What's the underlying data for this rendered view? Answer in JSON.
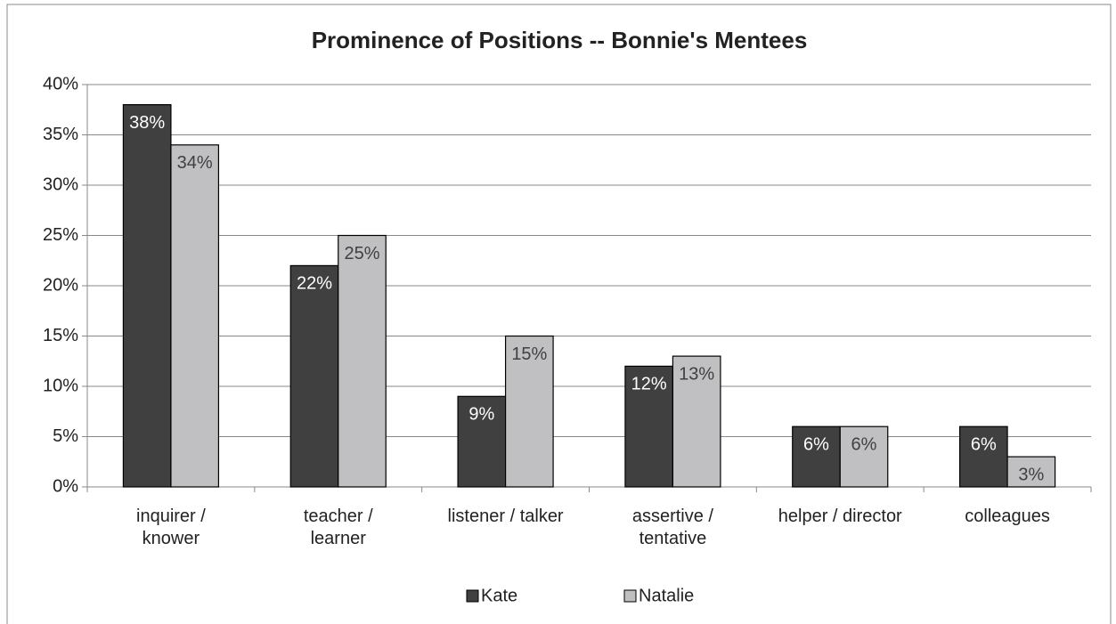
{
  "chart_data": {
    "type": "bar",
    "title": "Prominence of Positions -- Bonnie's Mentees",
    "categories": [
      [
        "inquirer /",
        "knower"
      ],
      [
        "teacher /",
        "learner"
      ],
      [
        "listener / talker"
      ],
      [
        "assertive /",
        "tentative"
      ],
      [
        "helper / director"
      ],
      [
        "colleagues"
      ]
    ],
    "series": [
      {
        "name": "Kate",
        "color": "#404040",
        "values": [
          38,
          22,
          9,
          12,
          6,
          6
        ],
        "value_labels": [
          "38%",
          "22%",
          "9%",
          "12%",
          "6%",
          "6%"
        ],
        "label_color": "#ffffff"
      },
      {
        "name": "Natalie",
        "color": "#c0c0c2",
        "values": [
          34,
          25,
          15,
          13,
          6,
          3
        ],
        "value_labels": [
          "34%",
          "25%",
          "15%",
          "13%",
          "6%",
          "3%"
        ],
        "label_color": "#404040"
      }
    ],
    "ylim": [
      0,
      40
    ],
    "yticks": [
      {
        "value": 0,
        "label": "0%"
      },
      {
        "value": 5,
        "label": "5%"
      },
      {
        "value": 10,
        "label": "10%"
      },
      {
        "value": 15,
        "label": "15%"
      },
      {
        "value": 20,
        "label": "20%"
      },
      {
        "value": 25,
        "label": "25%"
      },
      {
        "value": 30,
        "label": "30%"
      },
      {
        "value": 35,
        "label": "35%"
      },
      {
        "value": 40,
        "label": "40%"
      }
    ],
    "grid": true,
    "legend": "bottom"
  }
}
